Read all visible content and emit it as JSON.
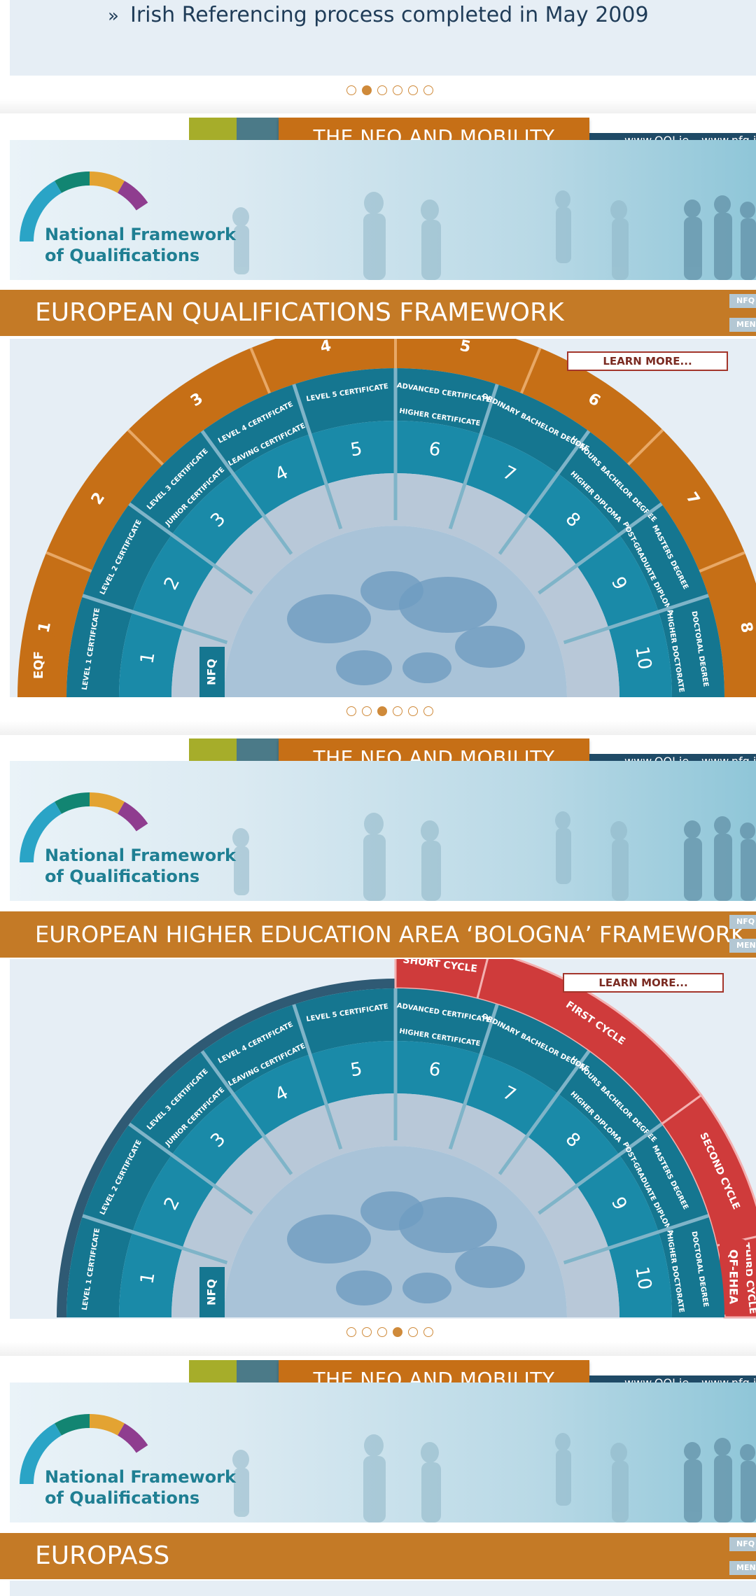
{
  "top_card": {
    "bullet": "»",
    "text": "Irish Referencing process completed in May 2009"
  },
  "pager_1": {
    "count": 6,
    "active": 1
  },
  "pager_2": {
    "count": 6,
    "active": 2
  },
  "pager_3": {
    "count": 6,
    "active": 3
  },
  "banner": {
    "tab_title": "THE NFQ AND MOBILITY",
    "domain_1": "www.QQI.ie",
    "domain_2": "www.nfq.ie",
    "logo_line_1": "National Framework",
    "logo_line_2": "of Qualifications"
  },
  "side_tabs": {
    "tab_1": "NFQ",
    "tab_2": "MEN"
  },
  "slides": [
    {
      "title": "EUROPEAN QUALIFICATIONS FRAMEWORK",
      "learn_more": "LEARN MORE..."
    },
    {
      "title": "EUROPEAN HIGHER EDUCATION AREA ‘BOLOGNA’ FRAMEWORK",
      "learn_more": "LEARN MORE..."
    },
    {
      "title": "EUROPASS"
    }
  ],
  "wheel": {
    "nfq_label": "NFQ",
    "eqf_label": "EQF",
    "qf_ehea_label": "QF-EHEA",
    "nfq_levels": [
      "1",
      "2",
      "3",
      "4",
      "5",
      "6",
      "7",
      "8",
      "9",
      "10"
    ],
    "awards": [
      "LEVEL 1 CERTIFICATE",
      "LEVEL 2 CERTIFICATE",
      "LEVEL 3 CERTIFICATE / JUNIOR CERTIFICATE",
      "LEVEL 4 CERTIFICATE / LEAVING CERTIFICATE",
      "LEVEL 5 CERTIFICATE",
      "ADVANCED CERTIFICATE / HIGHER CERTIFICATE",
      "ORDINARY BACHELOR DEGREE",
      "HONOURS BACHELOR DEGREE / HIGHER DIPLOMA",
      "MASTERS DEGREE / POST-GRADUATE DIPLOMA",
      "DOCTORAL DEGREE / HIGHER DOCTORATE"
    ],
    "eqf_levels": [
      "1",
      "2",
      "3",
      "4",
      "5",
      "6",
      "7",
      "8"
    ],
    "cycles": [
      "SHORT CYCLE",
      "FIRST CYCLE",
      "SECOND CYCLE",
      "THIRD CYCLE"
    ]
  },
  "colors": {
    "orange": "#c66f16",
    "teal": "#1a8aa8",
    "teal_dark": "#157690",
    "globe": "#a9c3d8",
    "red": "#cf3b3b",
    "title_bar": "#c47a26"
  }
}
